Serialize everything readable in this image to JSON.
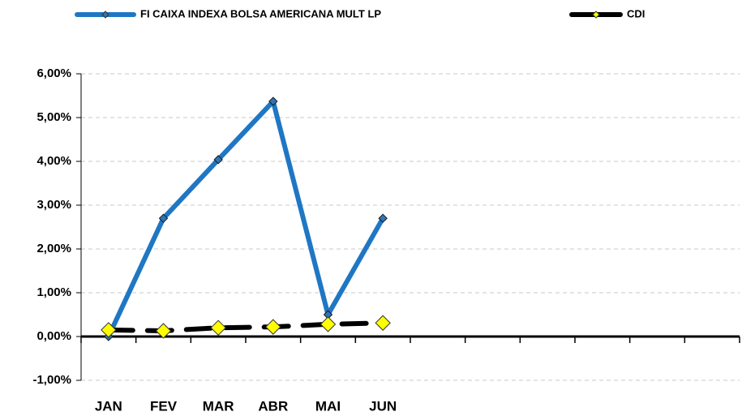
{
  "chart_data": {
    "type": "line",
    "categories": [
      "JAN",
      "FEV",
      "MAR",
      "ABR",
      "MAI",
      "JUN",
      null,
      null,
      null,
      null,
      null,
      null
    ],
    "series": [
      {
        "name": "FI CAIXA INDEXA BOLSA AMERICANA MULT LP",
        "color": "#1f77c4",
        "marker_color": "#2e75b6",
        "values": [
          0.0,
          2.7,
          4.04,
          5.37,
          0.5,
          2.7,
          null,
          null,
          null,
          null,
          null,
          null
        ]
      },
      {
        "name": "CDI",
        "color": "#000000",
        "marker_color": "#ffff00",
        "values": [
          0.15,
          0.13,
          0.2,
          0.22,
          0.28,
          0.31,
          null,
          null,
          null,
          null,
          null,
          null
        ]
      }
    ],
    "ylim": [
      -1,
      6
    ],
    "yticks": [
      {
        "value": -1,
        "label": "-1,00%"
      },
      {
        "value": 0,
        "label": "0,00%"
      },
      {
        "value": 1,
        "label": "1,00%"
      },
      {
        "value": 2,
        "label": "2,00%"
      },
      {
        "value": 3,
        "label": "3,00%"
      },
      {
        "value": 4,
        "label": "4,00%"
      },
      {
        "value": 5,
        "label": "5,00%"
      },
      {
        "value": 6,
        "label": "6,00%"
      }
    ],
    "grid": true,
    "legend": "top"
  }
}
